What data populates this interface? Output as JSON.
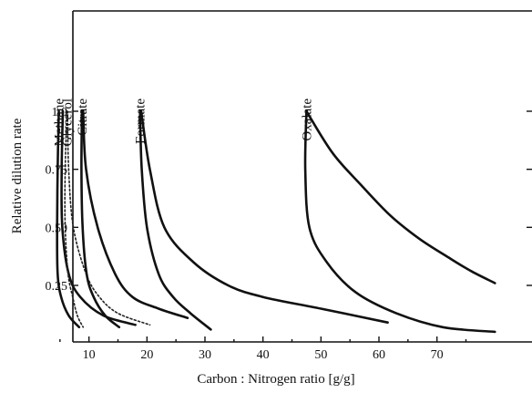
{
  "chart_data": {
    "type": "line",
    "title": "",
    "xlabel": "Carbon : Nitrogen ratio [g/g]",
    "ylabel": "Relative dilution rate",
    "xlim": [
      0,
      80
    ],
    "ylim": [
      0,
      1.27
    ],
    "x_ticks": [
      10,
      20,
      30,
      40,
      50,
      60,
      70
    ],
    "x_tick_labels": [
      "10",
      "20",
      "30",
      "40",
      "50",
      "60",
      "70"
    ],
    "y_ticks": [
      0.25,
      0.5,
      0.75,
      1.0
    ],
    "y_tick_labels": [
      "0.25",
      "0.50",
      "0.75",
      "1.0"
    ],
    "grid": false,
    "legend": "none",
    "series": [
      {
        "name": "Methane",
        "style": "solid",
        "curves": [
          [
            [
              4.8,
              1.0
            ],
            [
              4.6,
              0.75
            ],
            [
              4.5,
              0.5
            ],
            [
              4.6,
              0.3
            ],
            [
              5.2,
              0.2
            ],
            [
              6.5,
              0.12
            ],
            [
              8.3,
              0.07
            ]
          ],
          [
            [
              5.5,
              1.0
            ],
            [
              5.3,
              0.75
            ],
            [
              5.4,
              0.5
            ],
            [
              6.5,
              0.3
            ],
            [
              8.5,
              0.2
            ],
            [
              12.5,
              0.12
            ],
            [
              18.0,
              0.08
            ]
          ]
        ]
      },
      {
        "name": "Glycerol",
        "style": "dotted",
        "curves": [
          [
            [
              6.2,
              1.0
            ],
            [
              5.9,
              0.75
            ],
            [
              5.9,
              0.5
            ],
            [
              6.4,
              0.3
            ],
            [
              7.2,
              0.2
            ],
            [
              8.0,
              0.12
            ],
            [
              9.0,
              0.07
            ]
          ],
          [
            [
              6.3,
              1.0
            ],
            [
              6.5,
              0.75
            ],
            [
              7.3,
              0.5
            ],
            [
              9.5,
              0.3
            ],
            [
              11.8,
              0.2
            ],
            [
              15.0,
              0.13
            ],
            [
              20.5,
              0.08
            ]
          ]
        ]
      },
      {
        "name": "Citrate",
        "style": "solid",
        "curves": [
          [
            [
              8.8,
              1.0
            ],
            [
              8.7,
              0.75
            ],
            [
              8.9,
              0.5
            ],
            [
              9.6,
              0.3
            ],
            [
              10.8,
              0.2
            ],
            [
              12.8,
              0.12
            ],
            [
              15.2,
              0.07
            ]
          ],
          [
            [
              9.0,
              1.0
            ],
            [
              9.5,
              0.75
            ],
            [
              11.5,
              0.5
            ],
            [
              14.5,
              0.3
            ],
            [
              17.5,
              0.2
            ],
            [
              22.0,
              0.15
            ],
            [
              27.0,
              0.11
            ]
          ]
        ]
      },
      {
        "name": "Formate",
        "style": "solid",
        "curves": [
          [
            [
              18.8,
              1.0
            ],
            [
              19.1,
              0.75
            ],
            [
              20.0,
              0.5
            ],
            [
              22.0,
              0.3
            ],
            [
              24.5,
              0.2
            ],
            [
              27.5,
              0.13
            ],
            [
              31.0,
              0.06
            ]
          ],
          [
            [
              19.0,
              1.0
            ],
            [
              20.5,
              0.75
            ],
            [
              23.0,
              0.5
            ],
            [
              28.0,
              0.35
            ],
            [
              34.0,
              0.25
            ],
            [
              40.0,
              0.2
            ],
            [
              50.0,
              0.15
            ],
            [
              61.5,
              0.09
            ]
          ]
        ]
      },
      {
        "name": "Oxalate",
        "style": "solid",
        "curves": [
          [
            [
              47.5,
              1.0
            ],
            [
              47.3,
              0.75
            ],
            [
              48.0,
              0.5
            ],
            [
              51.0,
              0.35
            ],
            [
              56.0,
              0.22
            ],
            [
              63.0,
              0.13
            ],
            [
              71.0,
              0.07
            ],
            [
              80.0,
              0.05
            ]
          ],
          [
            [
              47.5,
              1.0
            ],
            [
              52.0,
              0.82
            ],
            [
              57.0,
              0.68
            ],
            [
              62.0,
              0.55
            ],
            [
              67.0,
              0.45
            ],
            [
              72.0,
              0.37
            ],
            [
              76.0,
              0.31
            ],
            [
              80.0,
              0.26
            ]
          ]
        ]
      }
    ]
  }
}
